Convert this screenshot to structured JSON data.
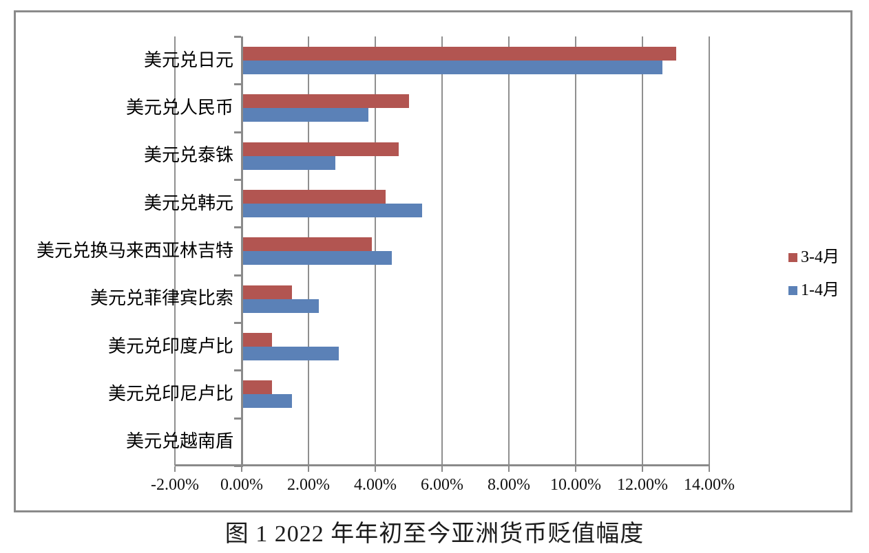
{
  "figure": {
    "caption": "图 1 2022 年年初至今亚洲货币贬值幅度"
  },
  "colors": {
    "series_red": "#b25551",
    "series_blue": "#5b81b7",
    "gridline": "#8f8f8f",
    "axis": "#8a8a8a",
    "border": "#8a8a8a"
  },
  "chart_data": {
    "type": "bar",
    "orientation": "horizontal",
    "title": "",
    "xlabel": "",
    "ylabel": "",
    "grid": true,
    "legend_position": "right",
    "categories": [
      "美元兑日元",
      "美元兑人民币",
      "美元兑泰铢",
      "美元兑韩元",
      "美元兑换马来西亚林吉特",
      "美元兑菲律宾比索",
      "美元兑印度卢比",
      "美元兑印尼卢比",
      "美元兑越南盾"
    ],
    "series": [
      {
        "name": "3-4月",
        "color": "#b25551",
        "values": [
          13.0,
          5.0,
          4.7,
          4.3,
          3.9,
          1.5,
          0.9,
          0.9,
          0.0
        ]
      },
      {
        "name": "1-4月",
        "color": "#5b81b7",
        "values": [
          12.6,
          3.8,
          2.8,
          5.4,
          4.5,
          2.3,
          2.9,
          1.5,
          0.0
        ]
      }
    ],
    "x_axis": {
      "min": -2,
      "max": 14,
      "step": 2,
      "tick_labels": [
        "-2.00%",
        "0.00%",
        "2.00%",
        "4.00%",
        "6.00%",
        "8.00%",
        "10.00%",
        "12.00%",
        "14.00%"
      ],
      "unit": "percent"
    }
  }
}
